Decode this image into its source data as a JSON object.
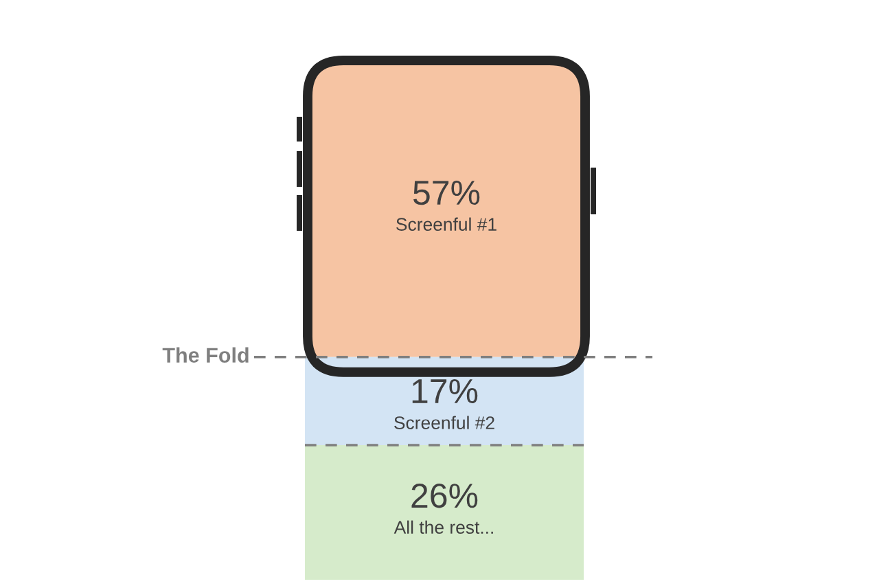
{
  "chart_data": {
    "type": "other",
    "categories": [
      "Screenful #1",
      "Screenful #2",
      "All the rest..."
    ],
    "values": [
      57,
      17,
      26
    ],
    "value_labels": [
      "57%",
      "17%",
      "26%"
    ],
    "colors": [
      "#f6c4a3",
      "#d3e4f4",
      "#d6ebcb"
    ],
    "annotations": [
      "The Fold"
    ]
  }
}
